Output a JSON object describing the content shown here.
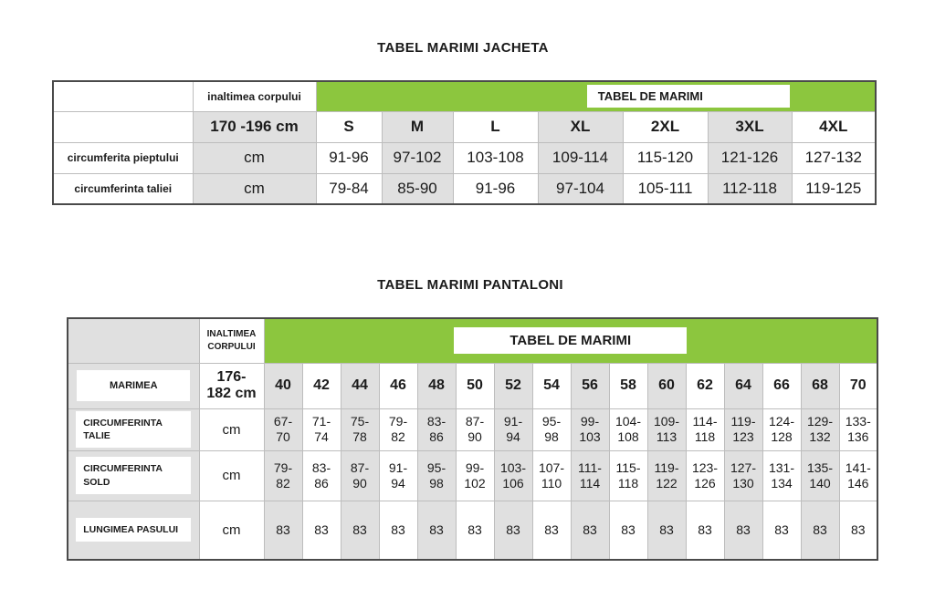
{
  "colors": {
    "green": "#8cc63e",
    "cell_gray": "#e0e0e0",
    "border_dark": "#4a4a4a",
    "border_light": "#bdbdbd"
  },
  "jacket_table": {
    "title": "TABEL MARIMI JACHETA",
    "height_label": "inaltimea corpului",
    "band_label": "TABEL DE MARIMI",
    "height_range": "170 -196 cm",
    "sizes": [
      "S",
      "M",
      "L",
      "XL",
      "2XL",
      "3XL",
      "4XL"
    ],
    "rows": [
      {
        "label": "circumferita pieptului",
        "unit": "cm",
        "values": [
          "91-96",
          "97-102",
          "103-108",
          "109-114",
          "115-120",
          "121-126",
          "127-132"
        ]
      },
      {
        "label": "circumferinta taliei",
        "unit": "cm",
        "values": [
          "79-84",
          "85-90",
          "91-96",
          "97-104",
          "105-111",
          "112-118",
          "119-125"
        ]
      }
    ]
  },
  "pants_table": {
    "title": "TABEL MARIMI PANTALONI",
    "height_label": "INALTIMEA CORPULUI",
    "band_label": "TABEL DE MARIMI",
    "size_row_label": "MARIMEA",
    "height_range": "176-182 cm",
    "sizes": [
      "40",
      "42",
      "44",
      "46",
      "48",
      "50",
      "52",
      "54",
      "56",
      "58",
      "60",
      "62",
      "64",
      "66",
      "68",
      "70"
    ],
    "rows": [
      {
        "label": "CIRCUMFERINTA TALIE",
        "unit": "cm",
        "values": [
          "67-70",
          "71-74",
          "75-78",
          "79-82",
          "83-86",
          "87-90",
          "91-94",
          "95-98",
          "99-103",
          "104-108",
          "109-113",
          "114-118",
          "119-123",
          "124-128",
          "129-132",
          "133-136"
        ]
      },
      {
        "label": "CIRCUMFERINTA SOLD",
        "unit": "cm",
        "values": [
          "79-82",
          "83-86",
          "87-90",
          "91-94",
          "95-98",
          "99-102",
          "103-106",
          "107-110",
          "111-114",
          "115-118",
          "119-122",
          "123-126",
          "127-130",
          "131-134",
          "135-140",
          "141-146"
        ]
      },
      {
        "label": "LUNGIMEA PASULUI",
        "unit": "cm",
        "values": [
          "83",
          "83",
          "83",
          "83",
          "83",
          "83",
          "83",
          "83",
          "83",
          "83",
          "83",
          "83",
          "83",
          "83",
          "83",
          "83"
        ]
      }
    ]
  }
}
